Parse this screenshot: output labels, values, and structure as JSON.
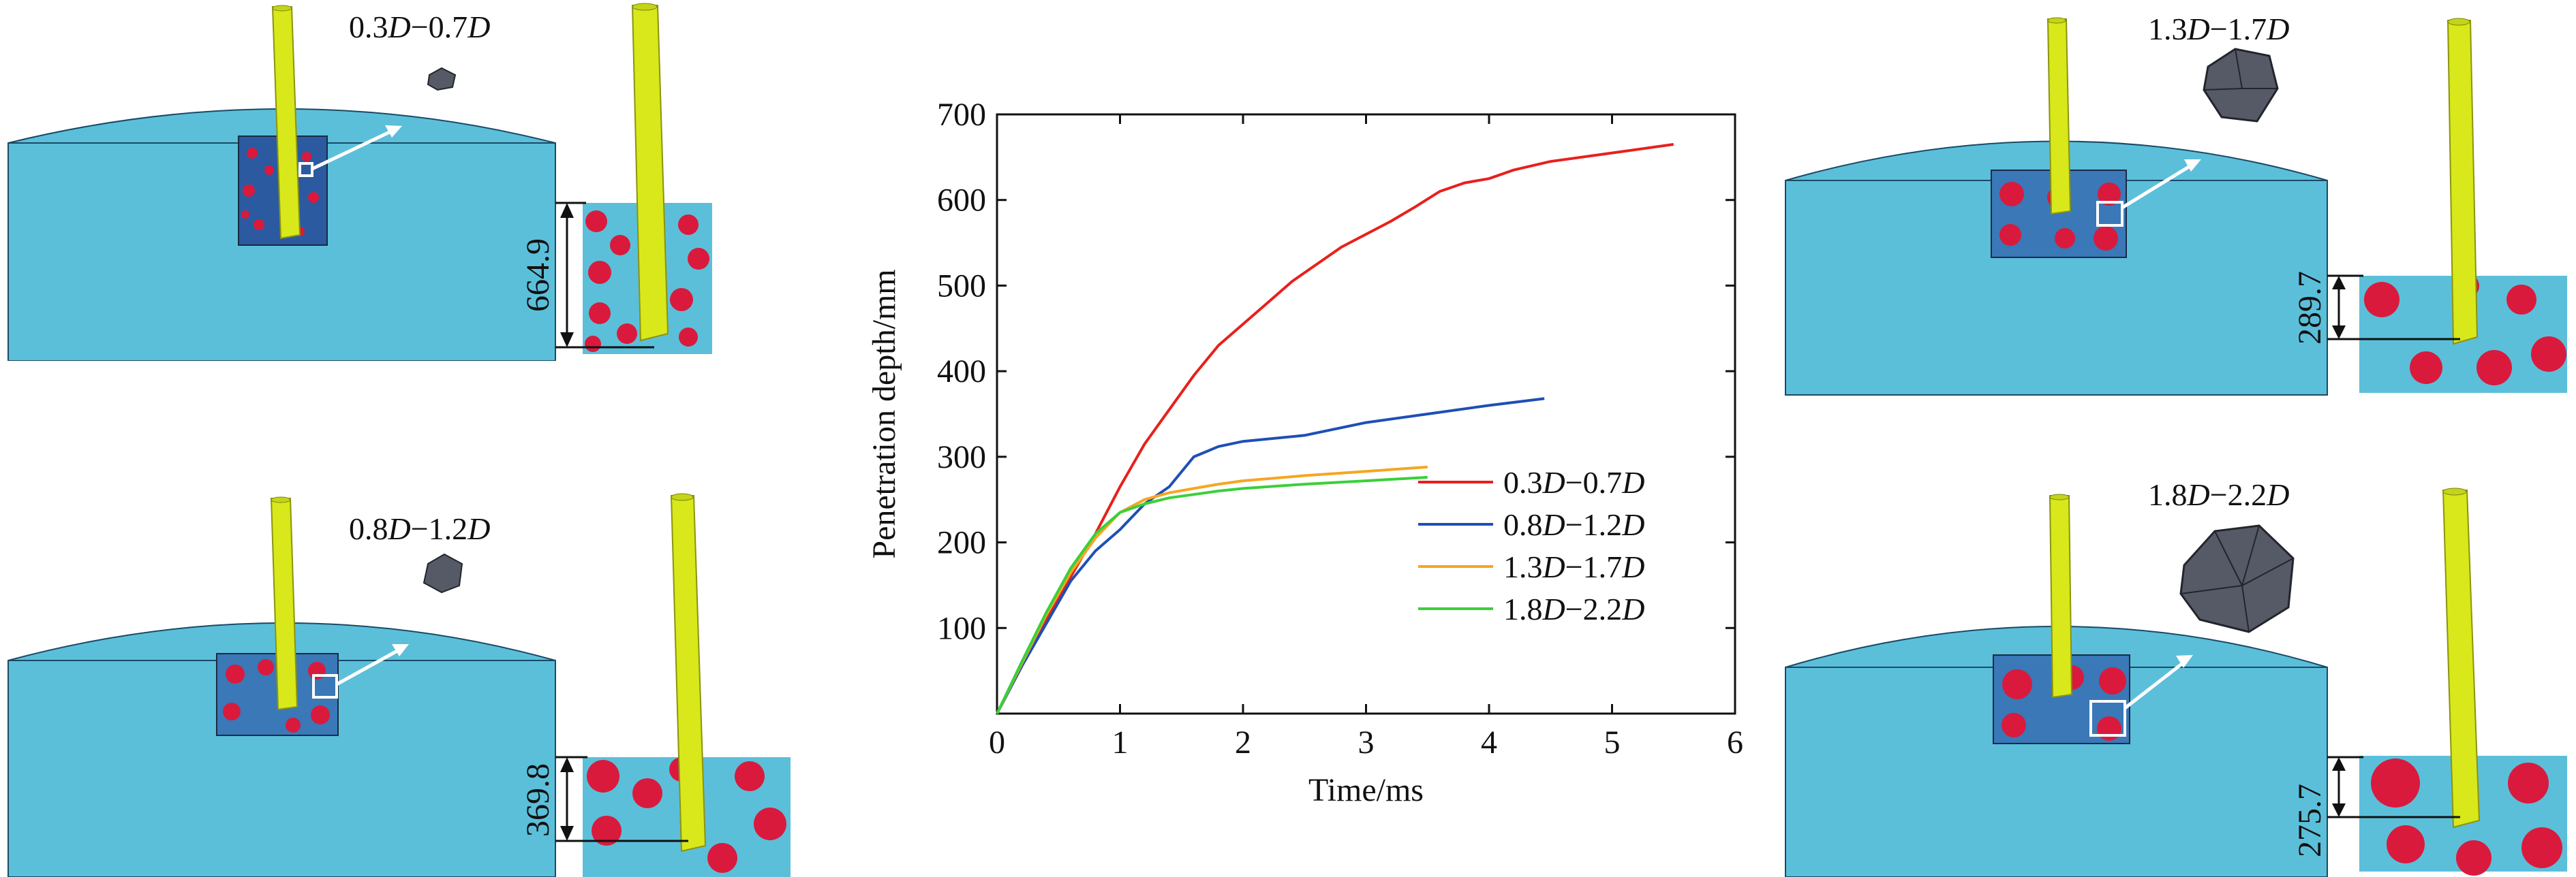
{
  "chart_data": {
    "type": "line",
    "title": "",
    "xlabel": "Time/ms",
    "ylabel": "Penetration depth/mm",
    "xlim": [
      0,
      6
    ],
    "ylim": [
      0,
      700
    ],
    "xticks": [
      0,
      1,
      2,
      3,
      4,
      5,
      6
    ],
    "yticks": [
      100,
      200,
      300,
      400,
      500,
      600,
      700
    ],
    "grid": false,
    "legend_position": "bottom-right",
    "series": [
      {
        "name": "0.3D−0.7D",
        "name_parts": [
          "0.3",
          "D",
          "−0.7",
          "D"
        ],
        "color": "#e8201c",
        "points": [
          [
            0,
            0
          ],
          [
            0.2,
            55
          ],
          [
            0.4,
            110
          ],
          [
            0.6,
            160
          ],
          [
            0.8,
            210
          ],
          [
            1.0,
            265
          ],
          [
            1.2,
            315
          ],
          [
            1.4,
            355
          ],
          [
            1.6,
            395
          ],
          [
            1.8,
            430
          ],
          [
            2.0,
            455
          ],
          [
            2.2,
            480
          ],
          [
            2.4,
            505
          ],
          [
            2.6,
            525
          ],
          [
            2.8,
            545
          ],
          [
            3.0,
            560
          ],
          [
            3.2,
            575
          ],
          [
            3.4,
            592
          ],
          [
            3.6,
            610
          ],
          [
            3.8,
            620
          ],
          [
            4.0,
            625
          ],
          [
            4.2,
            635
          ],
          [
            4.5,
            645
          ],
          [
            5.0,
            655
          ],
          [
            5.5,
            665
          ]
        ]
      },
      {
        "name": "0.8D−1.2D",
        "name_parts": [
          "0.8",
          "D",
          "−1.2",
          "D"
        ],
        "color": "#1f4fb5",
        "points": [
          [
            0,
            0
          ],
          [
            0.2,
            55
          ],
          [
            0.4,
            105
          ],
          [
            0.6,
            155
          ],
          [
            0.8,
            190
          ],
          [
            1.0,
            215
          ],
          [
            1.2,
            245
          ],
          [
            1.4,
            265
          ],
          [
            1.6,
            300
          ],
          [
            1.8,
            312
          ],
          [
            2.0,
            318
          ],
          [
            2.5,
            325
          ],
          [
            3.0,
            340
          ],
          [
            3.5,
            350
          ],
          [
            4.0,
            360
          ],
          [
            4.45,
            368
          ]
        ]
      },
      {
        "name": "1.3D−1.7D",
        "name_parts": [
          "1.3",
          "D",
          "−1.7",
          "D"
        ],
        "color": "#f5a623",
        "points": [
          [
            0,
            0
          ],
          [
            0.2,
            58
          ],
          [
            0.4,
            115
          ],
          [
            0.6,
            165
          ],
          [
            0.8,
            205
          ],
          [
            1.0,
            235
          ],
          [
            1.2,
            250
          ],
          [
            1.4,
            258
          ],
          [
            1.6,
            263
          ],
          [
            1.8,
            268
          ],
          [
            2.0,
            272
          ],
          [
            2.5,
            278
          ],
          [
            3.0,
            283
          ],
          [
            3.5,
            288
          ]
        ]
      },
      {
        "name": "1.8D−2.2D",
        "name_parts": [
          "1.8",
          "D",
          "−2.2",
          "D"
        ],
        "color": "#3ad03a",
        "points": [
          [
            0,
            0
          ],
          [
            0.2,
            60
          ],
          [
            0.4,
            118
          ],
          [
            0.6,
            170
          ],
          [
            0.8,
            210
          ],
          [
            1.0,
            235
          ],
          [
            1.2,
            245
          ],
          [
            1.4,
            252
          ],
          [
            1.6,
            256
          ],
          [
            1.8,
            260
          ],
          [
            2.0,
            263
          ],
          [
            2.5,
            268
          ],
          [
            3.0,
            272
          ],
          [
            3.5,
            276
          ]
        ]
      }
    ]
  },
  "panels": [
    {
      "id": "p1",
      "label_parts": [
        "0.3",
        "D",
        "−0.7",
        "D"
      ],
      "depth_label": "664.9",
      "depth_value": 664.9
    },
    {
      "id": "p2",
      "label_parts": [
        "0.8",
        "D",
        "−1.2",
        "D"
      ],
      "depth_label": "369.8",
      "depth_value": 369.8
    },
    {
      "id": "p3",
      "label_parts": [
        "1.3",
        "D",
        "−1.7",
        "D"
      ],
      "depth_label": "289.7",
      "depth_value": 289.7
    },
    {
      "id": "p4",
      "label_parts": [
        "1.8",
        "D",
        "−2.2",
        "D"
      ],
      "depth_label": "275.7",
      "depth_value": 275.7
    }
  ],
  "colors": {
    "target_blue": "#5bbfda",
    "rod_yellow": "#d8e81a",
    "aggregate_red": "#d91a3c",
    "aggregate_gray": "#555a66"
  }
}
